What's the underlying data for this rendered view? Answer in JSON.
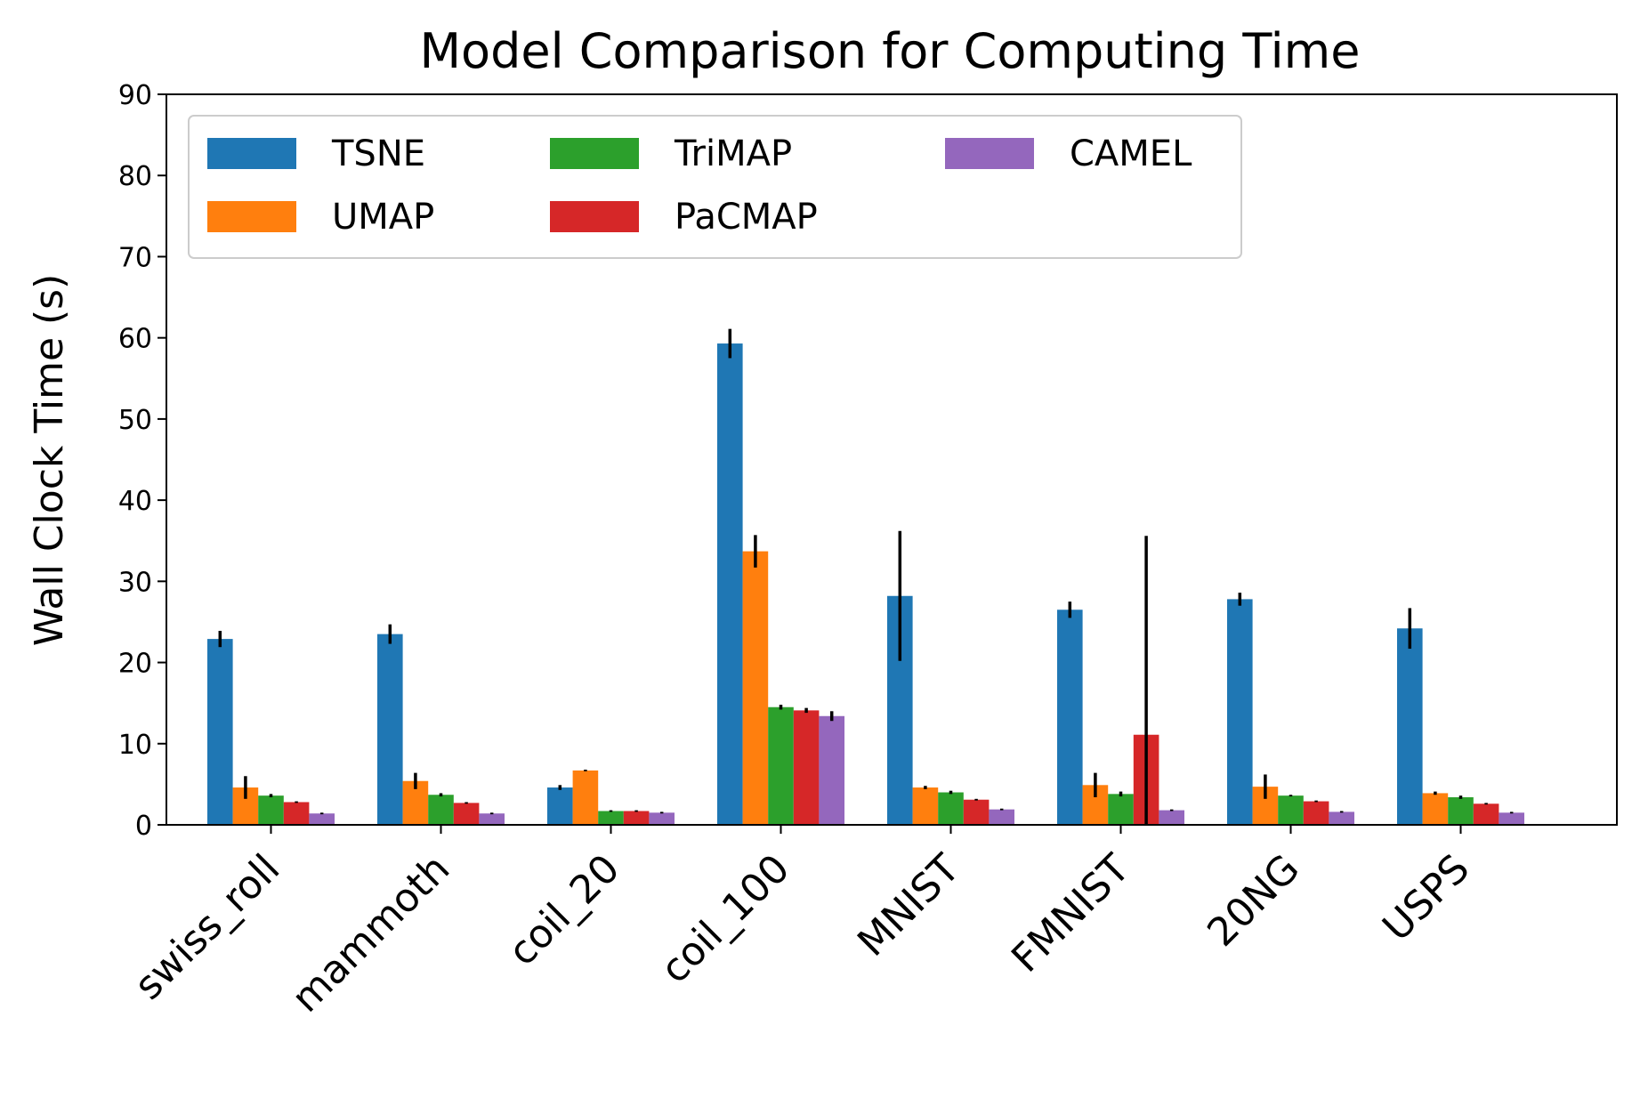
{
  "chart_data": {
    "type": "bar",
    "title": "Model Comparison for Computing Time",
    "xlabel": "",
    "ylabel": "Wall Clock Time (s)",
    "ylim": [
      0,
      90
    ],
    "yticks": [
      0,
      10,
      20,
      30,
      40,
      50,
      60,
      70,
      80,
      90
    ],
    "grid": false,
    "legend_position": "top-left",
    "categories": [
      "swiss_roll",
      "mammoth",
      "coil_20",
      "coil_100",
      "MNIST",
      "FMNIST",
      "20NG",
      "USPS"
    ],
    "series": [
      {
        "name": "TSNE",
        "color": "#1f77b4",
        "values": [
          22.9,
          23.5,
          4.6,
          59.3,
          28.2,
          26.5,
          27.8,
          24.2
        ],
        "errors": [
          1.0,
          1.2,
          0.3,
          1.8,
          8.0,
          1.0,
          0.8,
          2.5
        ]
      },
      {
        "name": "UMAP",
        "color": "#ff7f0e",
        "values": [
          4.6,
          5.4,
          6.7,
          33.7,
          4.6,
          4.9,
          4.7,
          3.9
        ],
        "errors": [
          1.4,
          1.0,
          0.1,
          2.0,
          0.2,
          1.5,
          1.5,
          0.2
        ]
      },
      {
        "name": "TriMAP",
        "color": "#2ca02c",
        "values": [
          3.6,
          3.7,
          1.7,
          14.5,
          4.0,
          3.8,
          3.6,
          3.4
        ],
        "errors": [
          0.2,
          0.2,
          0.1,
          0.3,
          0.2,
          0.3,
          0.1,
          0.2
        ]
      },
      {
        "name": "PaCMAP",
        "color": "#d62728",
        "values": [
          2.8,
          2.7,
          1.7,
          14.1,
          3.1,
          11.1,
          2.9,
          2.6
        ],
        "errors": [
          0.1,
          0.1,
          0.1,
          0.3,
          0.1,
          24.5,
          0.1,
          0.1
        ]
      },
      {
        "name": "CAMEL",
        "color": "#9467bd",
        "values": [
          1.4,
          1.4,
          1.5,
          13.4,
          1.9,
          1.8,
          1.6,
          1.5
        ],
        "errors": [
          0.1,
          0.1,
          0.1,
          0.6,
          0.1,
          0.1,
          0.1,
          0.1
        ]
      }
    ]
  }
}
